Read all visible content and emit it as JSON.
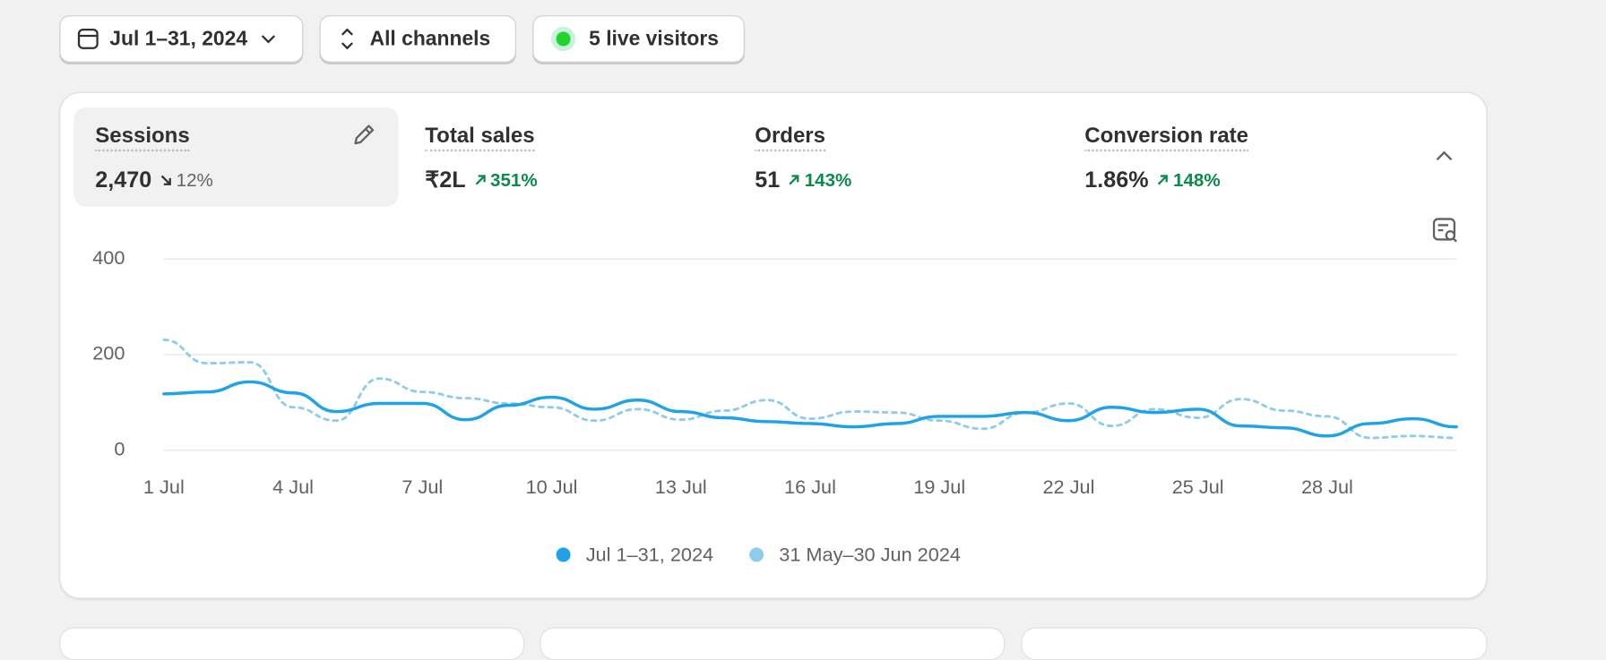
{
  "toolbar": {
    "date_range": "Jul 1–31, 2024",
    "channels": "All channels",
    "live_visitors": "5 live visitors"
  },
  "metrics": [
    {
      "label": "Sessions",
      "value": "2,470",
      "change": "12%"
    },
    {
      "label": "Total sales",
      "value": "₹2L",
      "change": "351%"
    },
    {
      "label": "Orders",
      "value": "51",
      "change": "143%"
    },
    {
      "label": "Conversion rate",
      "value": "1.86%",
      "change": "148%"
    }
  ],
  "chart_data": {
    "type": "line",
    "categories": [
      "1 Jul",
      null,
      null,
      "4 Jul",
      null,
      null,
      "7 Jul",
      null,
      null,
      "10 Jul",
      null,
      null,
      "13 Jul",
      null,
      null,
      "16 Jul",
      null,
      null,
      "19 Jul",
      null,
      null,
      "22 Jul",
      null,
      null,
      "25 Jul",
      null,
      null,
      "28 Jul",
      null,
      null,
      null
    ],
    "series": [
      {
        "name": "Jul 1–31, 2024",
        "color": "#1fa3e6",
        "values": [
          118,
          122,
          143,
          120,
          81,
          98,
          98,
          64,
          94,
          111,
          86,
          105,
          81,
          68,
          60,
          56,
          49,
          56,
          71,
          71,
          79,
          62,
          90,
          79,
          86,
          51,
          47,
          30,
          56,
          66,
          49
        ]
      },
      {
        "name": "31 May–30 Jun 2024",
        "color": "#8fcbea",
        "values": [
          231,
          182,
          184,
          90,
          62,
          150,
          122,
          109,
          98,
          90,
          62,
          86,
          64,
          83,
          105,
          66,
          81,
          79,
          62,
          45,
          79,
          98,
          51,
          86,
          68,
          107,
          83,
          71,
          26,
          30,
          26
        ]
      }
    ],
    "ylim": [
      0,
      400
    ],
    "yticks": [
      0,
      200,
      400
    ],
    "grid": true
  }
}
